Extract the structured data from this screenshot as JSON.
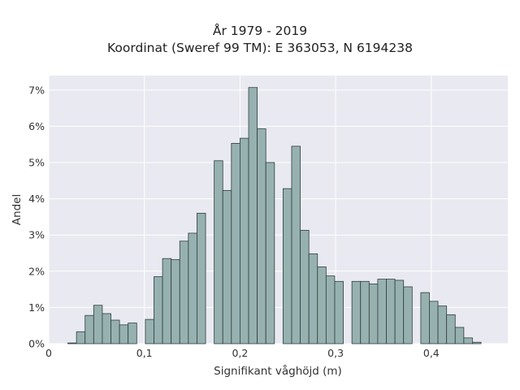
{
  "chart_data": {
    "type": "bar",
    "title": "År 1979 - 2019",
    "subtitle": "Koordinat (Sweref 99 TM): E 363053, N 6194238",
    "xlabel": "Signifikant våghöjd (m)",
    "ylabel": "Andel",
    "xlim": [
      0,
      0.48
    ],
    "ylim": [
      0,
      0.074
    ],
    "x_ticks": [
      0,
      0.1,
      0.2,
      0.3,
      0.4
    ],
    "x_tick_labels": [
      "0",
      "0,1",
      "0,2",
      "0,3",
      "0,4"
    ],
    "y_ticks": [
      0,
      0.01,
      0.02,
      0.03,
      0.04,
      0.05,
      0.06,
      0.07
    ],
    "y_tick_labels": [
      "0%",
      "1%",
      "2%",
      "3%",
      "4%",
      "5%",
      "6%",
      "7%"
    ],
    "grid": true,
    "bin_width": 0.009,
    "bin_starts": [
      0.02,
      0.029,
      0.038,
      0.047,
      0.056,
      0.065,
      0.074,
      0.083,
      0.101,
      0.11,
      0.119,
      0.128,
      0.137,
      0.146,
      0.155,
      0.173,
      0.182,
      0.191,
      0.2,
      0.209,
      0.218,
      0.227,
      0.245,
      0.254,
      0.263,
      0.272,
      0.281,
      0.29,
      0.299,
      0.317,
      0.326,
      0.335,
      0.344,
      0.353,
      0.362,
      0.371,
      0.389,
      0.398,
      0.407,
      0.416,
      0.425,
      0.434,
      0.443
    ],
    "values": [
      0.0002,
      0.0033,
      0.0078,
      0.0106,
      0.0083,
      0.0065,
      0.0052,
      0.0057,
      0.0067,
      0.0185,
      0.0235,
      0.0232,
      0.0283,
      0.0305,
      0.036,
      0.0505,
      0.0423,
      0.0553,
      0.0567,
      0.0707,
      0.0593,
      0.05,
      0.0428,
      0.0545,
      0.0313,
      0.0248,
      0.0212,
      0.0187,
      0.0172,
      0.0172,
      0.0172,
      0.0165,
      0.0178,
      0.0178,
      0.0175,
      0.0157,
      0.0141,
      0.0117,
      0.0104,
      0.008,
      0.0045,
      0.0016,
      0.0004
    ],
    "colors": {
      "bar_fill": "#97b1b1",
      "bar_stroke": "#2f3f3f",
      "plot_bg": "#e9e9f1",
      "grid": "#ffffff"
    }
  }
}
